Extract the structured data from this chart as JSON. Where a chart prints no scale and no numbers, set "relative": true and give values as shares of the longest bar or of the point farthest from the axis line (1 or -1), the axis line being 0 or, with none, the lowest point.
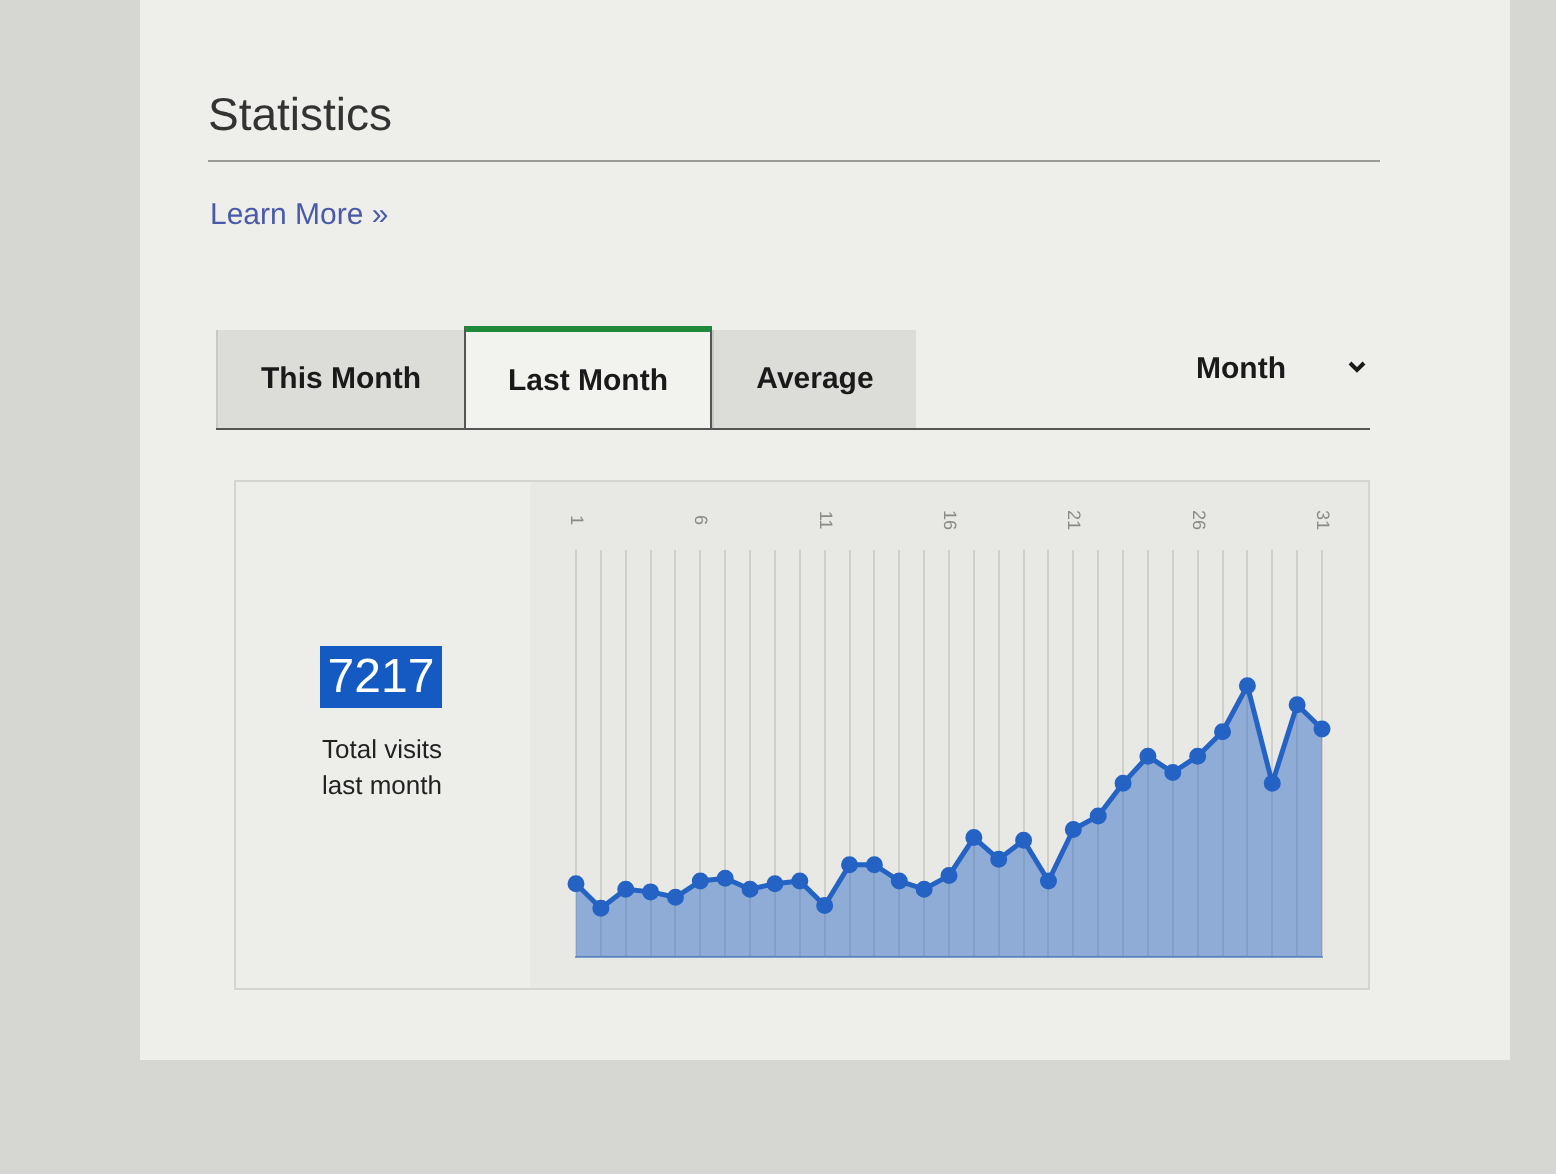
{
  "chart_data": {
    "type": "area",
    "title": "Statistics",
    "annotations": [
      "Learn More »",
      "This Month",
      "Last Month",
      "Average",
      "Month",
      "7217",
      "Total visits last month"
    ],
    "categories": [
      "1",
      null,
      null,
      null,
      null,
      "6",
      null,
      null,
      null,
      null,
      "11",
      null,
      null,
      null,
      null,
      "16",
      null,
      null,
      null,
      null,
      "21",
      null,
      null,
      null,
      null,
      "26",
      null,
      null,
      null,
      null,
      "31"
    ],
    "series": [
      {
        "color": "#2463c4",
        "values": [
          0.27,
          0.18,
          0.25,
          0.24,
          0.22,
          0.28,
          0.29,
          0.25,
          0.27,
          0.28,
          0.19,
          0.34,
          0.34,
          0.28,
          0.25,
          0.3,
          0.44,
          0.36,
          0.43,
          0.28,
          0.47,
          0.52,
          0.64,
          0.74,
          0.68,
          0.74,
          0.83,
          1,
          0.64,
          0.93,
          0.84
        ]
      }
    ],
    "relative": true,
    "marker": "circle",
    "grid": "x",
    "legend": false
  }
}
